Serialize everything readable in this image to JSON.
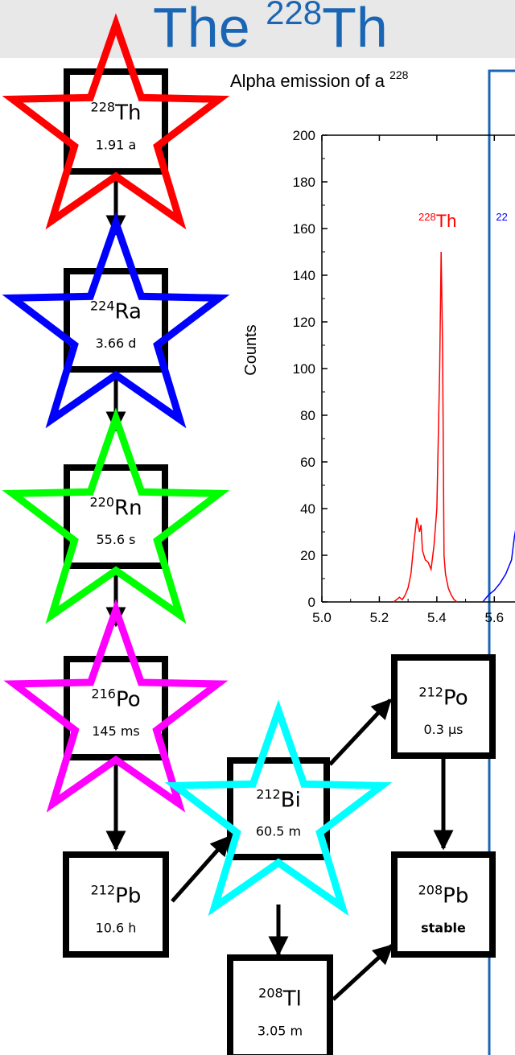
{
  "title": {
    "text": "The ",
    "sup": "228",
    "el": "Th"
  },
  "chart_caption": {
    "text": "Alpha emission of a ",
    "sup": "228"
  },
  "nuclides": {
    "th228": {
      "mass": "228",
      "el": "Th",
      "hl": "1.91 a",
      "star": "#ff0000"
    },
    "ra224": {
      "mass": "224",
      "el": "Ra",
      "hl": "3.66 d",
      "star": "#0000ff"
    },
    "rn220": {
      "mass": "220",
      "el": "Rn",
      "hl": "55.6 s",
      "star": "#00ff00"
    },
    "po216": {
      "mass": "216",
      "el": "Po",
      "hl": "145 ms",
      "star": "#ff00ff"
    },
    "pb212": {
      "mass": "212",
      "el": "Pb",
      "hl": "10.6 h"
    },
    "bi212": {
      "mass": "212",
      "el": "Bi",
      "hl": "60.5 m",
      "star": "#00ffff"
    },
    "po212": {
      "mass": "212",
      "el": "Po",
      "hl": "0.3 µs"
    },
    "pb208": {
      "mass": "208",
      "el": "Pb",
      "hl": "stable"
    },
    "tl208": {
      "mass": "208",
      "el": "Tl",
      "hl": "3.05 m"
    }
  },
  "chart_data": {
    "type": "line",
    "ylabel": "Counts",
    "xlim": [
      5.0,
      5.7
    ],
    "ylim": [
      0,
      200
    ],
    "xticks": [
      "5.0",
      "5.2",
      "5.4",
      "5.6"
    ],
    "yticks": [
      "0",
      "20",
      "40",
      "60",
      "80",
      "100",
      "120",
      "140",
      "160",
      "180",
      "200"
    ],
    "peak_labels": [
      {
        "mass": "228",
        "el": "Th",
        "x": 5.42,
        "y": 162,
        "color": "#ff0000"
      },
      {
        "mass": "22",
        "el": "",
        "x": 5.69,
        "y": 162,
        "color": "#0000ff"
      }
    ],
    "series": [
      {
        "color": "#ff0000",
        "points": [
          [
            5.25,
            0
          ],
          [
            5.26,
            1
          ],
          [
            5.27,
            2
          ],
          [
            5.28,
            1
          ],
          [
            5.29,
            3
          ],
          [
            5.3,
            6
          ],
          [
            5.31,
            12
          ],
          [
            5.32,
            25
          ],
          [
            5.33,
            36
          ],
          [
            5.34,
            30
          ],
          [
            5.345,
            33
          ],
          [
            5.35,
            22
          ],
          [
            5.36,
            18
          ],
          [
            5.37,
            17
          ],
          [
            5.38,
            14
          ],
          [
            5.39,
            24
          ],
          [
            5.4,
            40
          ],
          [
            5.41,
            100
          ],
          [
            5.415,
            150
          ],
          [
            5.42,
            110
          ],
          [
            5.425,
            20
          ],
          [
            5.43,
            12
          ],
          [
            5.44,
            6
          ],
          [
            5.45,
            3
          ],
          [
            5.46,
            1
          ],
          [
            5.47,
            0
          ]
        ]
      },
      {
        "color": "#0000ff",
        "points": [
          [
            5.56,
            0
          ],
          [
            5.58,
            3
          ],
          [
            5.6,
            5
          ],
          [
            5.62,
            8
          ],
          [
            5.64,
            12
          ],
          [
            5.66,
            18
          ],
          [
            5.67,
            28
          ],
          [
            5.68,
            35
          ]
        ]
      }
    ]
  }
}
